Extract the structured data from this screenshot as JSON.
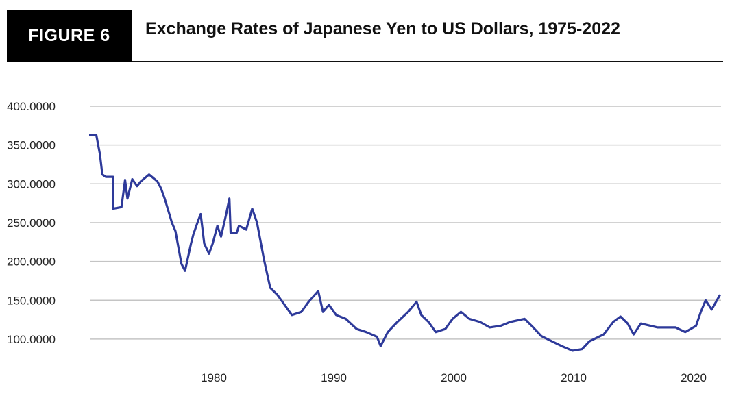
{
  "figure_label": "FIGURE 6",
  "chart_data": {
    "type": "line",
    "title": "Exchange Rates of Japanese Yen to US Dollars, 1975-2022",
    "xlabel": "",
    "ylabel": "",
    "xlim": [
      1969.6,
      2022.5
    ],
    "ylim": [
      80,
      400
    ],
    "grid": true,
    "line_color": "#2e3a9a",
    "x_ticks": [
      1980,
      1990,
      2000,
      2010,
      2020
    ],
    "x_tick_labels": [
      "1980",
      "1990",
      "2000",
      "2010",
      "2020"
    ],
    "y_ticks": [
      100,
      150,
      200,
      250,
      300,
      350,
      400
    ],
    "y_tick_labels": [
      "100.0000",
      "150.0000",
      "200.0000",
      "250.0000",
      "300.0000",
      "350.0000",
      "400.0000"
    ],
    "series": [
      {
        "x": [
          1969.6,
          1970.2,
          1970.5,
          1970.7,
          1971.0,
          1971.6,
          1971.6,
          1972.3,
          1972.6,
          1972.8,
          1973.2,
          1973.6,
          1973.9,
          1974.6,
          1975.3,
          1975.6,
          1975.9,
          1976.5,
          1976.8,
          1977.3,
          1977.6,
          1978.1,
          1978.3,
          1978.7,
          1978.9,
          1979.2,
          1979.6,
          1979.9,
          1980.3,
          1980.6,
          1981.0,
          1981.3,
          1981.4,
          1981.9,
          1982.1,
          1982.7,
          1983.2,
          1983.6,
          1984.2,
          1984.7,
          1985.3,
          1985.9,
          1986.5,
          1987.3,
          1987.9,
          1988.7,
          1989.1,
          1989.6,
          1990.2,
          1991.0,
          1991.9,
          1992.7,
          1993.6,
          1993.9,
          1994.5,
          1995.3,
          1996.2,
          1996.9,
          1997.3,
          1997.9,
          1998.5,
          1999.3,
          1999.9,
          2000.6,
          2001.3,
          2002.2,
          2003.0,
          2003.9,
          2004.7,
          2005.9,
          2006.5,
          2007.3,
          2008.2,
          2009.0,
          2009.9,
          2010.7,
          2011.3,
          2012.5,
          2013.3,
          2013.9,
          2014.5,
          2015.0,
          2015.6,
          2017.0,
          2018.5,
          2019.3,
          2020.2,
          2020.6,
          2021.0,
          2021.5,
          2022.2
        ],
        "y": [
          363,
          363,
          338,
          312,
          309,
          309,
          268,
          270,
          305,
          281,
          306,
          297,
          303,
          312,
          303,
          294,
          281,
          250,
          239,
          197,
          188,
          223,
          235,
          253,
          261,
          223,
          210,
          223,
          246,
          232,
          259,
          281,
          237,
          237,
          246,
          241,
          268,
          250,
          201,
          166,
          157,
          144,
          131,
          135,
          148,
          162,
          135,
          144,
          131,
          126,
          113,
          109,
          103,
          91,
          109,
          122,
          135,
          148,
          131,
          122,
          109,
          113,
          126,
          135,
          126,
          122,
          115,
          117,
          122,
          126,
          117,
          104,
          97,
          91,
          85,
          87,
          97,
          106,
          122,
          129,
          120,
          106,
          120,
          115,
          115,
          109,
          117,
          135,
          150,
          138,
          157
        ]
      }
    ]
  }
}
